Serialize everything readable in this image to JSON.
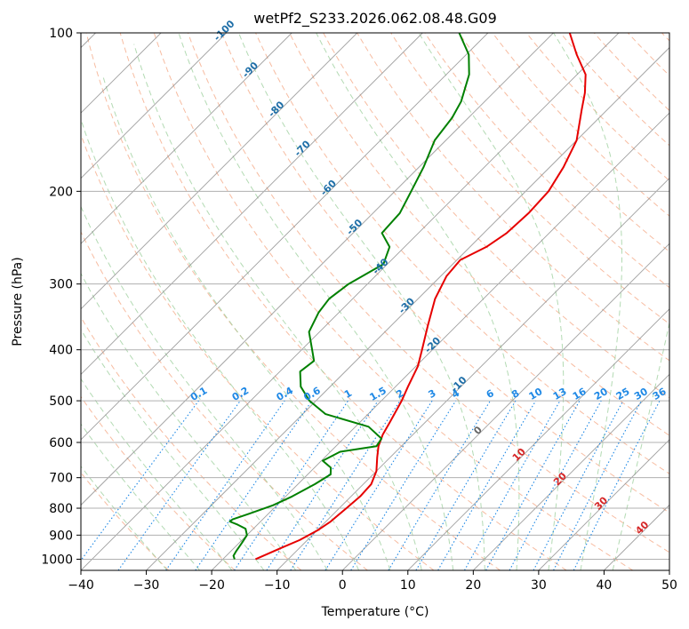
{
  "chart_data": {
    "type": "line",
    "title": "wetPf2_S233.2026.062.08.48.G09",
    "xlabel": "Temperature (°C)",
    "ylabel": "Pressure (hPa)",
    "xlim": [
      -40,
      50
    ],
    "ylim": [
      1050,
      100
    ],
    "y_scale": "log",
    "grid": true,
    "x_ticks": [
      -40,
      -30,
      -20,
      -10,
      0,
      10,
      20,
      30,
      40,
      50
    ],
    "y_ticks": [
      100,
      200,
      300,
      400,
      500,
      600,
      700,
      800,
      900,
      1000
    ],
    "skew_deg": 45,
    "series": [
      {
        "color": "#e60000",
        "points": [
          [
            1000,
            -15.0
          ],
          [
            950,
            -12.7
          ],
          [
            920,
            -11.2
          ],
          [
            880,
            -9.9
          ],
          [
            850,
            -9.3
          ],
          [
            800,
            -8.9
          ],
          [
            760,
            -8.6
          ],
          [
            720,
            -8.8
          ],
          [
            680,
            -10.0
          ],
          [
            640,
            -12.0
          ],
          [
            610,
            -13.5
          ],
          [
            580,
            -14.6
          ],
          [
            550,
            -15.4
          ],
          [
            500,
            -16.9
          ],
          [
            470,
            -18.1
          ],
          [
            430,
            -19.7
          ],
          [
            400,
            -21.6
          ],
          [
            360,
            -24.4
          ],
          [
            320,
            -27.4
          ],
          [
            290,
            -29.1
          ],
          [
            270,
            -29.5
          ],
          [
            255,
            -27.5
          ],
          [
            240,
            -26.5
          ],
          [
            220,
            -26.2
          ],
          [
            200,
            -26.5
          ],
          [
            180,
            -27.9
          ],
          [
            160,
            -30.0
          ],
          [
            140,
            -33.9
          ],
          [
            130,
            -36.0
          ],
          [
            120,
            -38.7
          ],
          [
            110,
            -43.1
          ],
          [
            100,
            -47.5
          ]
        ]
      },
      {
        "color": "#008000",
        "points": [
          [
            1000,
            -18.2
          ],
          [
            985,
            -18.9
          ],
          [
            965,
            -19.2
          ],
          [
            930,
            -19.6
          ],
          [
            900,
            -20.0
          ],
          [
            875,
            -21.2
          ],
          [
            860,
            -23.0
          ],
          [
            848,
            -24.7
          ],
          [
            840,
            -24.6
          ],
          [
            820,
            -23.0
          ],
          [
            790,
            -20.6
          ],
          [
            760,
            -19.0
          ],
          [
            720,
            -17.4
          ],
          [
            690,
            -16.5
          ],
          [
            670,
            -17.5
          ],
          [
            650,
            -19.8
          ],
          [
            625,
            -18.5
          ],
          [
            610,
            -13.8
          ],
          [
            590,
            -14.2
          ],
          [
            560,
            -18.0
          ],
          [
            530,
            -26.5
          ],
          [
            500,
            -31.0
          ],
          [
            470,
            -34.5
          ],
          [
            440,
            -36.9
          ],
          [
            420,
            -36.4
          ],
          [
            400,
            -38.4
          ],
          [
            370,
            -41.6
          ],
          [
            340,
            -43.1
          ],
          [
            320,
            -43.6
          ],
          [
            300,
            -42.9
          ],
          [
            275,
            -40.6
          ],
          [
            255,
            -42.3
          ],
          [
            240,
            -45.6
          ],
          [
            220,
            -45.9
          ],
          [
            200,
            -47.5
          ],
          [
            180,
            -49.3
          ],
          [
            160,
            -51.7
          ],
          [
            145,
            -52.5
          ],
          [
            135,
            -53.6
          ],
          [
            120,
            -56.5
          ],
          [
            110,
            -59.6
          ],
          [
            100,
            -64.4
          ]
        ]
      }
    ],
    "dry_adiabat_labels": [
      "-100",
      "-90",
      "-80",
      "-70",
      "-60",
      "-50",
      "-40",
      "-30",
      "-20",
      "-10",
      "0",
      "10",
      "20",
      "30",
      "40"
    ],
    "mixing_ratio_labels": [
      "0.1",
      "0.2",
      "0.4",
      "0.6",
      "1",
      "1.5",
      "2",
      "3",
      "4",
      "6",
      "8",
      "10",
      "13",
      "16",
      "20",
      "25",
      "30",
      "36"
    ]
  },
  "colors": {
    "grid": "#b0b0b0",
    "isotherm": "#888888",
    "dry_adiabat": "#f4a582",
    "moist_adiabat": "#9acd9a",
    "mixing_ratio": "#1e88e5",
    "theta_label": "#1f6fa8",
    "theta_label_warm": "#d62728",
    "theta_label_zero": "#666666"
  }
}
